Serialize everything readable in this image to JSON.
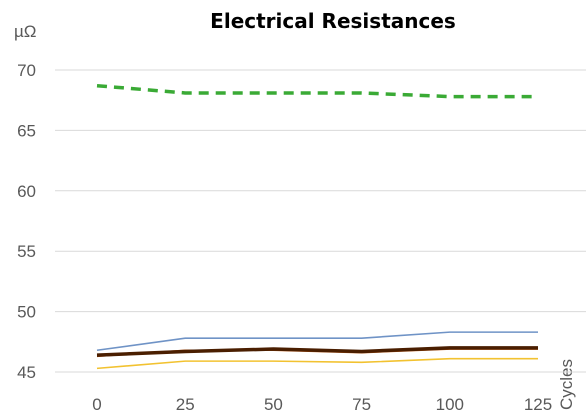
{
  "chart_data": {
    "type": "line",
    "title": "Electrical Resistances",
    "ylabel": "µΩ",
    "xlabel": "Cycles",
    "x": [
      0,
      25,
      50,
      75,
      100,
      125
    ],
    "ylim": [
      45,
      70
    ],
    "yticks": [
      45,
      50,
      55,
      60,
      65,
      70
    ],
    "grid": true,
    "series": [
      {
        "values": [
          68.7,
          68.1,
          68.1,
          68.1,
          67.8,
          67.8
        ],
        "color": "#3aaa35",
        "dash": true,
        "width": 3.5
      },
      {
        "values": [
          46.8,
          47.8,
          47.8,
          47.8,
          48.3,
          48.3
        ],
        "color": "#6f93c6",
        "dash": false,
        "width": 1.6
      },
      {
        "values": [
          46.3,
          46.8,
          46.8,
          46.6,
          46.9,
          46.9
        ],
        "color": "#c55a11",
        "dash": false,
        "width": 1.6
      },
      {
        "values": [
          46.4,
          46.7,
          46.9,
          46.7,
          47.0,
          47.0
        ],
        "color": "#4a1e00",
        "dash": false,
        "width": 3.5
      },
      {
        "values": [
          45.3,
          45.9,
          45.9,
          45.8,
          46.1,
          46.1
        ],
        "color": "#f2c230",
        "dash": false,
        "width": 1.6
      }
    ]
  }
}
